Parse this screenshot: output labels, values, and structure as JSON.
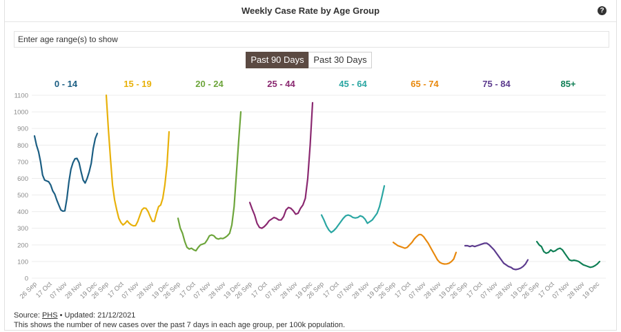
{
  "title": "Weekly Case Rate by Age Group",
  "help_icon": "question-circle-icon",
  "filter": {
    "placeholder": "Enter age range(s) to show",
    "value": ""
  },
  "toggles": {
    "active": "Past 90 Days",
    "inactive": "Past 30 Days"
  },
  "footer": {
    "source_prefix": "Source: ",
    "source_link": "PHS",
    "source_suffix": " • Updated: 21/12/2021",
    "note": "This shows the number of new cases over the past 7 days in each age group, per 100k population."
  },
  "chart_data": {
    "type": "line",
    "layout": "small-multiples",
    "ylim": [
      0,
      1100
    ],
    "yticks": [
      0,
      100,
      200,
      300,
      400,
      500,
      600,
      700,
      800,
      900,
      1000,
      1100
    ],
    "x_range": [
      "2021-09-20",
      "2021-12-19"
    ],
    "xtick_labels": [
      "26 Sep",
      "17 Oct",
      "07 Nov",
      "28 Nov",
      "19 Dec"
    ],
    "grid": true,
    "series": [
      {
        "name": "0 - 14",
        "color": "#1b5e83",
        "values": [
          855,
          800,
          760,
          700,
          620,
          590,
          585,
          580,
          560,
          525,
          505,
          470,
          440,
          410,
          403,
          405,
          480,
          580,
          655,
          695,
          718,
          720,
          695,
          640,
          590,
          572,
          600,
          640,
          690,
          780,
          840,
          870
        ]
      },
      {
        "name": "15 - 19",
        "color": "#e8b10a",
        "values": [
          1100,
          900,
          720,
          560,
          470,
          410,
          360,
          335,
          320,
          330,
          345,
          330,
          320,
          315,
          316,
          340,
          375,
          410,
          422,
          420,
          400,
          370,
          342,
          342,
          390,
          430,
          440,
          480,
          560,
          680,
          880
        ]
      },
      {
        "name": "20 - 24",
        "color": "#6da53b",
        "values": [
          360,
          300,
          270,
          220,
          185,
          175,
          180,
          170,
          165,
          185,
          200,
          205,
          210,
          230,
          255,
          260,
          255,
          240,
          235,
          240,
          238,
          245,
          255,
          270,
          320,
          430,
          620,
          820,
          1000
        ]
      },
      {
        "name": "25 - 44",
        "color": "#8a2870",
        "values": [
          455,
          415,
          380,
          330,
          305,
          300,
          310,
          325,
          345,
          355,
          365,
          360,
          350,
          350,
          370,
          410,
          425,
          420,
          405,
          385,
          390,
          420,
          440,
          480,
          600,
          800,
          1055
        ]
      },
      {
        "name": "45 - 64",
        "color": "#2aa6a2",
        "values": [
          380,
          350,
          315,
          290,
          275,
          285,
          300,
          320,
          340,
          360,
          375,
          380,
          375,
          365,
          362,
          365,
          375,
          370,
          355,
          330,
          340,
          350,
          370,
          390,
          430,
          490,
          555
        ]
      },
      {
        "name": "65 - 74",
        "color": "#e8880c",
        "values": [
          215,
          205,
          195,
          190,
          185,
          180,
          185,
          200,
          215,
          235,
          250,
          262,
          262,
          250,
          230,
          210,
          185,
          160,
          135,
          110,
          95,
          88,
          85,
          86,
          90,
          100,
          115,
          155
        ]
      },
      {
        "name": "75 - 84",
        "color": "#5c3b8e",
        "values": [
          195,
          195,
          190,
          195,
          190,
          195,
          200,
          205,
          210,
          210,
          200,
          185,
          170,
          150,
          130,
          110,
          90,
          80,
          70,
          65,
          55,
          52,
          55,
          60,
          70,
          85,
          110
        ]
      },
      {
        "name": "85+",
        "color": "#0f7f55",
        "values": [
          220,
          200,
          190,
          160,
          150,
          155,
          170,
          160,
          165,
          175,
          180,
          170,
          150,
          130,
          110,
          105,
          108,
          105,
          100,
          90,
          80,
          75,
          70,
          65,
          68,
          75,
          85,
          100
        ]
      }
    ]
  }
}
